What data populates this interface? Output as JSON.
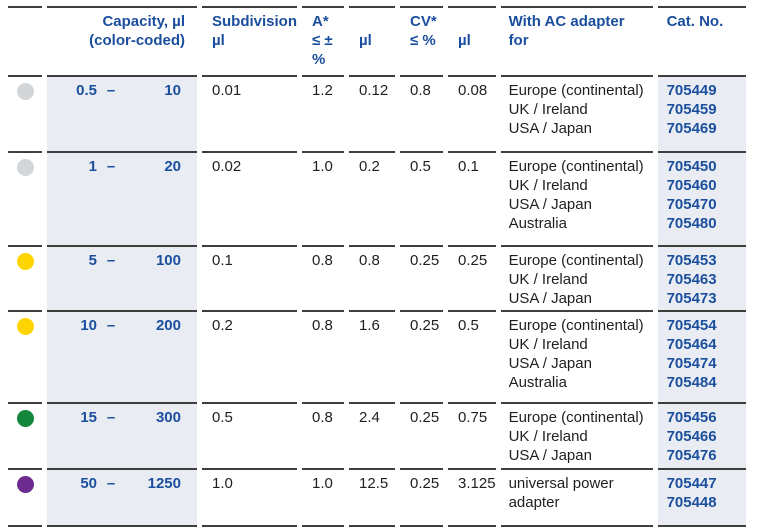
{
  "accent_color": "#1b4f9e",
  "shade_color": "#e9edf3",
  "rule_color": "#3e3e3d",
  "header": {
    "capacity_line1": "Capacity, µl",
    "capacity_line2": "(color-coded)",
    "subdivision_line1": "Subdivision",
    "subdivision_line2": "µl",
    "accuracy_line1": "A*",
    "accuracy_line2": "≤ ± %",
    "accuracy_ul": "µl",
    "cv_line1": "CV*",
    "cv_line2": "≤ %",
    "cv_ul": "µl",
    "adapter_line1": "With AC adapter",
    "adapter_line2": "for",
    "cat_no": "Cat. No."
  },
  "table": {
    "rows": [
      {
        "dot_name": "light-gray",
        "dot_color": "#d3d6d9",
        "min": "0.5",
        "dash": "–",
        "max": "10",
        "subdivision": "0.01",
        "a_pct": "1.2",
        "a_ul": "0.12",
        "cv_pct": "0.8",
        "cv_ul": "0.08",
        "adapters": [
          "Europe (continental)",
          "UK / Ireland",
          "USA / Japan"
        ],
        "cat_nos": [
          "705449",
          "705459",
          "705469"
        ]
      },
      {
        "dot_name": "light-gray",
        "dot_color": "#d3d6d9",
        "min": "1",
        "dash": "–",
        "max": "20",
        "subdivision": "0.02",
        "a_pct": "1.0",
        "a_ul": "0.2",
        "cv_pct": "0.5",
        "cv_ul": "0.1",
        "adapters": [
          "Europe (continental)",
          "UK / Ireland",
          "USA / Japan",
          "Australia"
        ],
        "cat_nos": [
          "705450",
          "705460",
          "705470",
          "705480"
        ]
      },
      {
        "dot_name": "yellow",
        "dot_color": "#ffd500",
        "min": "5",
        "dash": "–",
        "max": "100",
        "subdivision": "0.1",
        "a_pct": "0.8",
        "a_ul": "0.8",
        "cv_pct": "0.25",
        "cv_ul": "0.25",
        "adapters": [
          "Europe (continental)",
          "UK / Ireland",
          "USA / Japan"
        ],
        "cat_nos": [
          "705453",
          "705463",
          "705473"
        ]
      },
      {
        "dot_name": "yellow",
        "dot_color": "#ffd500",
        "min": "10",
        "dash": "–",
        "max": "200",
        "subdivision": "0.2",
        "a_pct": "0.8",
        "a_ul": "1.6",
        "cv_pct": "0.25",
        "cv_ul": "0.5",
        "adapters": [
          "Europe (continental)",
          "UK / Ireland",
          "USA / Japan",
          "Australia"
        ],
        "cat_nos": [
          "705454",
          "705464",
          "705474",
          "705484"
        ]
      },
      {
        "dot_name": "green",
        "dot_color": "#15873c",
        "min": "15",
        "dash": "–",
        "max": "300",
        "subdivision": "0.5",
        "a_pct": "0.8",
        "a_ul": "2.4",
        "cv_pct": "0.25",
        "cv_ul": "0.75",
        "adapters": [
          "Europe (continental)",
          "UK / Ireland",
          "USA / Japan"
        ],
        "cat_nos": [
          "705456",
          "705466",
          "705476"
        ]
      },
      {
        "dot_name": "purple",
        "dot_color": "#6c2b8e",
        "min": "50",
        "dash": "–",
        "max": "1250",
        "subdivision": "1.0",
        "a_pct": "1.0",
        "a_ul": "12.5",
        "cv_pct": "0.25",
        "cv_ul": "3.125",
        "adapters": [
          "universal power",
          "adapter"
        ],
        "cat_nos": [
          "705447",
          "705448"
        ]
      }
    ]
  }
}
